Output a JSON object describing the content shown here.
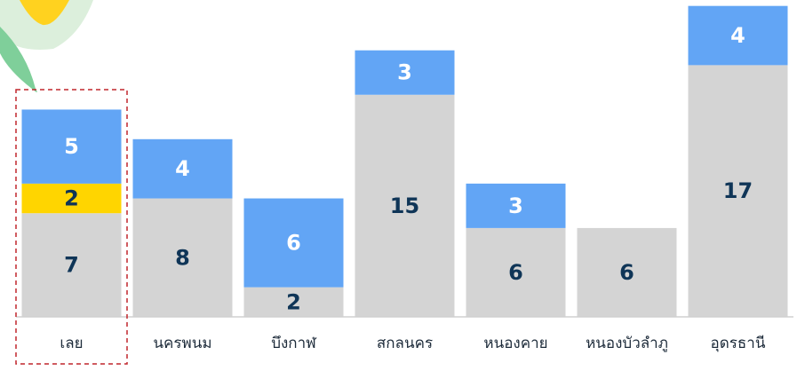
{
  "chart_data": {
    "type": "stacked-bar",
    "categories": [
      "เลย",
      "นครพนม",
      "บึงกาฬ",
      "สกลนคร",
      "หนองคาย",
      "หนองบัวลำภู",
      "อุดรธานี"
    ],
    "series": [
      {
        "color": "#d4d4d4",
        "label_color": "#0f3557",
        "values": [
          7,
          8,
          2,
          15,
          6,
          6,
          17
        ]
      },
      {
        "color": "#ffd500",
        "label_color": "#0f3557",
        "values": [
          2,
          null,
          null,
          null,
          null,
          null,
          null
        ]
      },
      {
        "color": "#62a5f5",
        "label_color": "#ffffff",
        "values": [
          5,
          4,
          6,
          3,
          3,
          null,
          4
        ]
      }
    ],
    "ylim": [
      0,
      21.4
    ],
    "highlight_category": 0,
    "highlight_color": "#c0272d"
  }
}
